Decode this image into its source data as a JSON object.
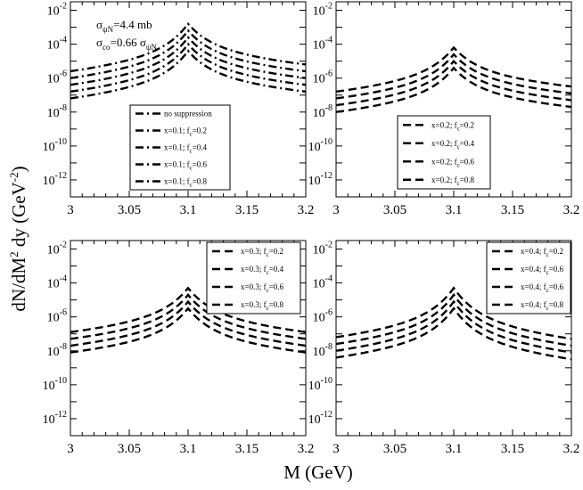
{
  "figure": {
    "ylabel_main": "dN/dM",
    "ylabel_sup1": "2",
    "ylabel_mid": " dy (GeV",
    "ylabel_sup2": "-2",
    "ylabel_end": ")",
    "xlabel": "M (GeV)"
  },
  "chart_data": [
    {
      "type": "line",
      "panel": "top-left",
      "xlim": [
        3,
        3.2
      ],
      "ylim_log10": [
        -13,
        -1.5
      ],
      "xticks": [
        "3",
        "3.05",
        "3.1",
        "3.15",
        "3.2"
      ],
      "yticks": [
        {
          "base": "10",
          "exp": "-2",
          "log": -2
        },
        {
          "base": "10",
          "exp": "-4",
          "log": -4
        },
        {
          "base": "10",
          "exp": "-6",
          "log": -6
        },
        {
          "base": "10",
          "exp": "-8",
          "log": -8
        },
        {
          "base": "10",
          "exp": "-10",
          "log": -10
        },
        {
          "base": "10",
          "exp": "-12",
          "log": -12
        }
      ],
      "annotation": {
        "l1_sigma": "σ",
        "l1_sub": "ψN",
        "l1_val": "=4.4 mb",
        "l2_sigma": "σ",
        "l2_sub": "co",
        "l2_val": "=0.66 σ",
        "l2_sub2": "ψN"
      },
      "legend_position": "center",
      "line_style": "dash-dot",
      "series": [
        {
          "label": "no suppression",
          "left": -5.6,
          "peak": -2.8,
          "right": -5.2
        },
        {
          "label_pre": "x=0.1; f",
          "label_sub": "c",
          "label_post": "=0.2",
          "left": -6.0,
          "peak": -3.2,
          "right": -5.6
        },
        {
          "label_pre": "x=0.1; f",
          "label_sub": "c",
          "label_post": "=0.4",
          "left": -6.4,
          "peak": -3.6,
          "right": -6.0
        },
        {
          "label_pre": "x=0.1; f",
          "label_sub": "c",
          "label_post": "=0.6",
          "left": -6.8,
          "peak": -4.0,
          "right": -6.4
        },
        {
          "label_pre": "x=0.1; f",
          "label_sub": "c",
          "label_post": "=0.8",
          "left": -7.2,
          "peak": -4.4,
          "right": -6.8
        }
      ]
    },
    {
      "type": "line",
      "panel": "top-right",
      "xlim": [
        3,
        3.2
      ],
      "ylim_log10": [
        -13,
        -1.5
      ],
      "xticks": [
        "3",
        "3.05",
        "3.1",
        "3.15",
        "3.2"
      ],
      "yticks": [
        {
          "base": "10",
          "exp": "-2",
          "log": -2
        },
        {
          "base": "10",
          "exp": "-4",
          "log": -4
        },
        {
          "base": "10",
          "exp": "-6",
          "log": -6
        },
        {
          "base": "10",
          "exp": "-8",
          "log": -8
        },
        {
          "base": "10",
          "exp": "-10",
          "log": -10
        },
        {
          "base": "10",
          "exp": "-12",
          "log": -12
        }
      ],
      "legend_position": "bottom-right",
      "line_style": "dash",
      "series": [
        {
          "label_pre": "x=0.2; f",
          "label_sub": "c",
          "label_post": "=0.2",
          "left": -6.8,
          "peak": -4.2,
          "right": -6.5
        },
        {
          "label_pre": "x=0.2; f",
          "label_sub": "c",
          "label_post": "=0.4",
          "left": -7.2,
          "peak": -4.6,
          "right": -6.9
        },
        {
          "label_pre": "x=0.2; f",
          "label_sub": "c",
          "label_post": "=0.6",
          "left": -7.6,
          "peak": -5.0,
          "right": -7.3
        },
        {
          "label_pre": "x=0.2; f",
          "label_sub": "c",
          "label_post": "=0.8",
          "left": -8.0,
          "peak": -5.4,
          "right": -7.7
        }
      ]
    },
    {
      "type": "line",
      "panel": "bottom-left",
      "xlim": [
        3,
        3.2
      ],
      "ylim_log10": [
        -13,
        -1.5
      ],
      "xticks": [
        "3",
        "3.05",
        "3.1",
        "3.15",
        "3.2"
      ],
      "yticks": [
        {
          "base": "10",
          "exp": "-2",
          "log": -2
        },
        {
          "base": "10",
          "exp": "-4",
          "log": -4
        },
        {
          "base": "10",
          "exp": "-6",
          "log": -6
        },
        {
          "base": "10",
          "exp": "-8",
          "log": -8
        },
        {
          "base": "10",
          "exp": "-10",
          "log": -10
        },
        {
          "base": "10",
          "exp": "-12",
          "log": -12
        }
      ],
      "legend_position": "top-right",
      "line_style": "dash",
      "series": [
        {
          "label_pre": "x=0.3; f",
          "label_sub": "c",
          "label_post": "=0.2",
          "left": -6.9,
          "peak": -4.3,
          "right": -6.9
        },
        {
          "label_pre": "x=0.3; f",
          "label_sub": "c",
          "label_post": "=0.4",
          "left": -7.3,
          "peak": -4.7,
          "right": -7.3
        },
        {
          "label_pre": "x=0.3; f",
          "label_sub": "c",
          "label_post": "=0.6",
          "left": -7.7,
          "peak": -5.1,
          "right": -7.7
        },
        {
          "label_pre": "x=0.3; f",
          "label_sub": "c",
          "label_post": "=0.8",
          "left": -8.1,
          "peak": -5.5,
          "right": -8.1
        }
      ]
    },
    {
      "type": "line",
      "panel": "bottom-right",
      "xlim": [
        3,
        3.2
      ],
      "ylim_log10": [
        -13,
        -1.5
      ],
      "xticks": [
        "3",
        "3.05",
        "3.1",
        "3.15",
        "3.2"
      ],
      "yticks": [
        {
          "base": "10",
          "exp": "-2",
          "log": -2
        },
        {
          "base": "10",
          "exp": "-4",
          "log": -4
        },
        {
          "base": "10",
          "exp": "-6",
          "log": -6
        },
        {
          "base": "10",
          "exp": "-8",
          "log": -8
        },
        {
          "base": "10",
          "exp": "-10",
          "log": -10
        },
        {
          "base": "10",
          "exp": "-12",
          "log": -12
        }
      ],
      "legend_position": "top-right",
      "line_style": "dash",
      "series": [
        {
          "label_pre": "x=0.4; f",
          "label_sub": "c",
          "label_post": "=0.2",
          "left": -7.2,
          "peak": -4.3,
          "right": -7.3
        },
        {
          "label_pre": "x=0.4; f",
          "label_sub": "c",
          "label_post": "=0.6",
          "left": -7.6,
          "peak": -4.7,
          "right": -7.7
        },
        {
          "label_pre": "x=0.4; f",
          "label_sub": "c",
          "label_post": "=0.6",
          "left": -8.0,
          "peak": -5.1,
          "right": -8.1
        },
        {
          "label_pre": "x=0.4; f",
          "label_sub": "c",
          "label_post": "=0.8",
          "left": -8.4,
          "peak": -5.5,
          "right": -8.5
        }
      ]
    }
  ]
}
